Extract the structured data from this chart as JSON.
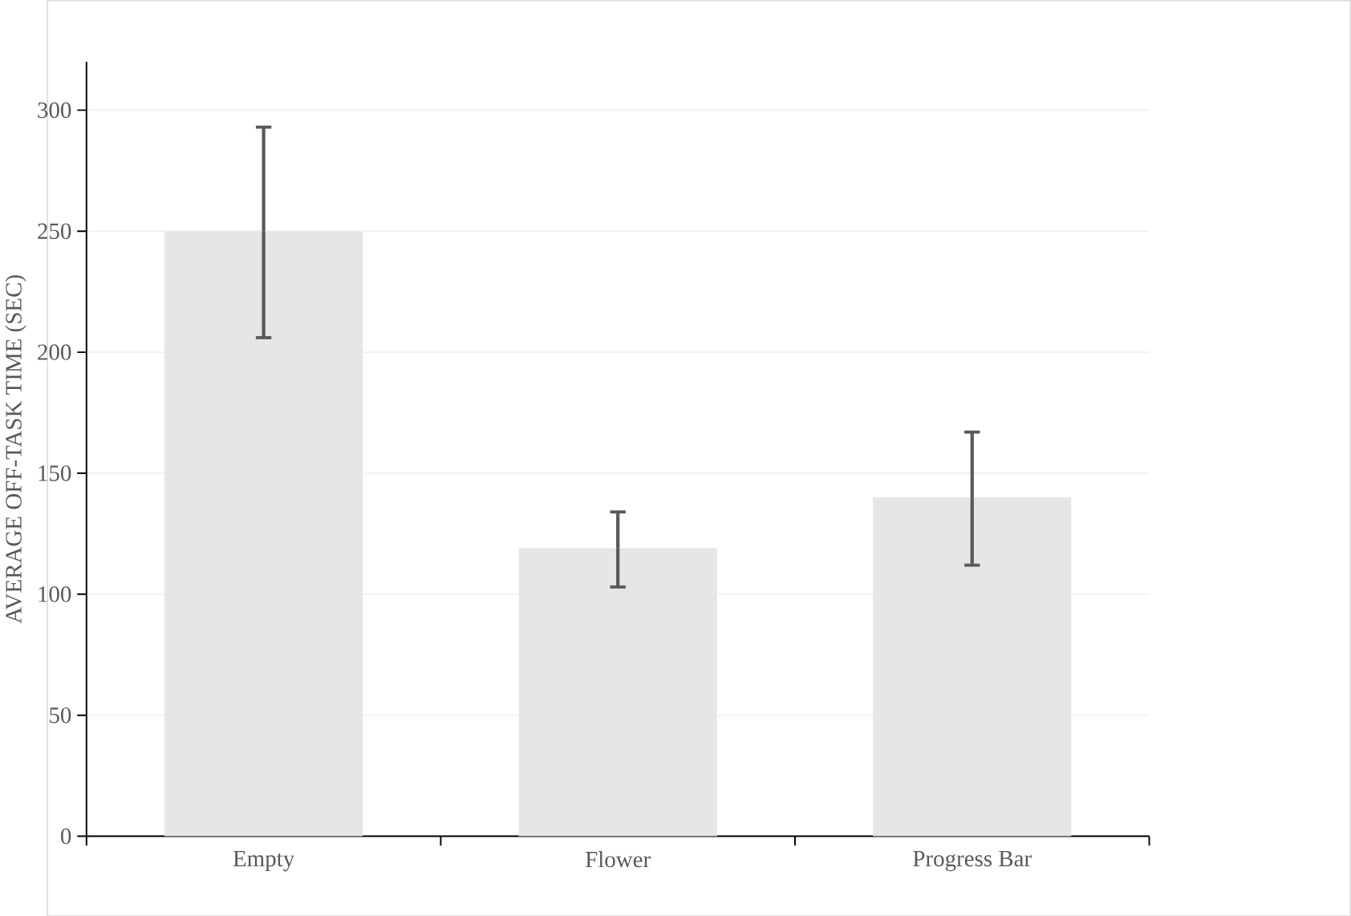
{
  "chart_data": {
    "type": "bar",
    "ylabel": "AVERAGE OFF-TASK TIME (SEC)",
    "categories": [
      "Empty",
      "Flower",
      "Progress Bar"
    ],
    "values": [
      250,
      119,
      140
    ],
    "errors": [
      [
        206,
        293
      ],
      [
        103,
        134
      ],
      [
        112,
        167
      ]
    ],
    "color": "#e6e6e6",
    "ylim": [
      0,
      320
    ],
    "yticks": [
      0,
      50,
      100,
      150,
      200,
      250,
      300
    ],
    "grid": "y"
  }
}
